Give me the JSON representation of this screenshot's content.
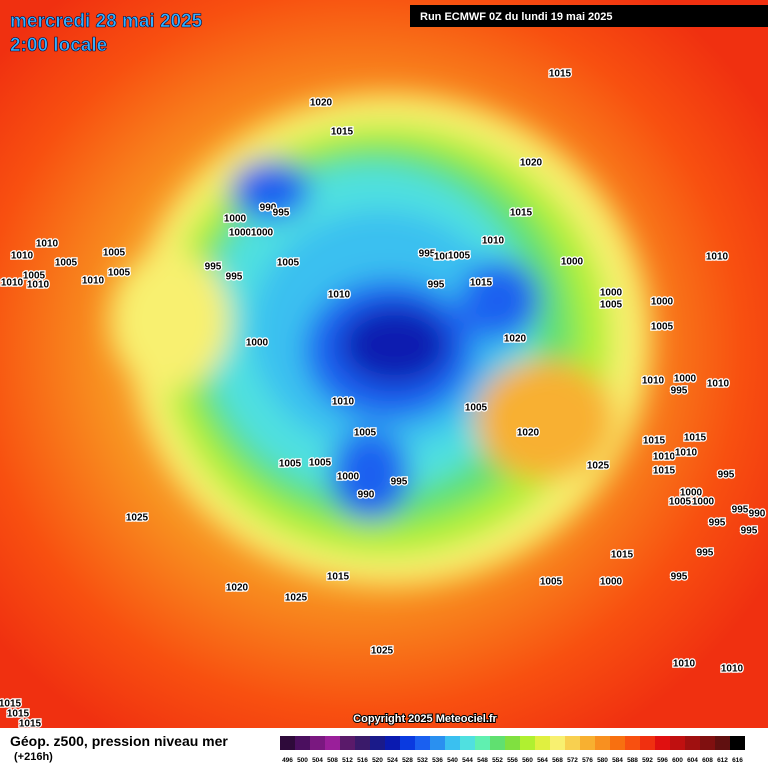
{
  "header": {
    "date": "mercredi 28 mai 2025",
    "time": "2:00 locale",
    "run": "Run ECMWF 0Z du lundi 19 mai 2025"
  },
  "copyright": "Copyright 2025 Meteociel.fr",
  "legend": {
    "title": "Géop. z500, pression niveau mer",
    "lead": "(+216h)",
    "ticks": [
      496,
      500,
      504,
      508,
      512,
      516,
      520,
      524,
      528,
      532,
      536,
      540,
      544,
      548,
      552,
      556,
      560,
      564,
      568,
      572,
      576,
      580,
      584,
      588,
      592,
      596,
      600,
      604,
      608,
      612,
      616
    ],
    "colors": [
      "#2e0a3a",
      "#4b0f5f",
      "#7a1880",
      "#9a1f9a",
      "#5a1a6a",
      "#3a1a6a",
      "#1a1a8a",
      "#0a1ab0",
      "#0a3ae0",
      "#1a60f0",
      "#2a90f0",
      "#3ac0f0",
      "#50e0e0",
      "#60f0b0",
      "#60e070",
      "#80e040",
      "#b0f030",
      "#e0f040",
      "#f8f070",
      "#f8d050",
      "#f8b030",
      "#f89020",
      "#f87010",
      "#f85010",
      "#f03010",
      "#e01010",
      "#c01010",
      "#a01010",
      "#801010",
      "#601010",
      "#000000"
    ]
  },
  "isobar_labels": [
    1015,
    1020,
    1015,
    1020,
    1015,
    990,
    995,
    1000,
    1000,
    1000,
    1010,
    1010,
    1005,
    1005,
    1005,
    1010,
    1010,
    1005,
    1010,
    995,
    995,
    1005,
    1010,
    995,
    1000,
    1005,
    1000,
    1010,
    995,
    1015,
    1010,
    1000,
    1005,
    1000,
    1005,
    1020,
    1000,
    1010,
    1000,
    995,
    1010,
    1010,
    1005,
    1005,
    1020,
    1015,
    1015,
    1010,
    1010,
    1005,
    1005,
    1025,
    1015,
    995,
    1000,
    995,
    990,
    1000,
    1000,
    1005,
    995,
    990,
    995,
    1025,
    995,
    1015,
    995,
    1015,
    1005,
    1000,
    995,
    1020,
    1025,
    1025,
    1010,
    1010,
    1015,
    1015,
    1015
  ]
}
